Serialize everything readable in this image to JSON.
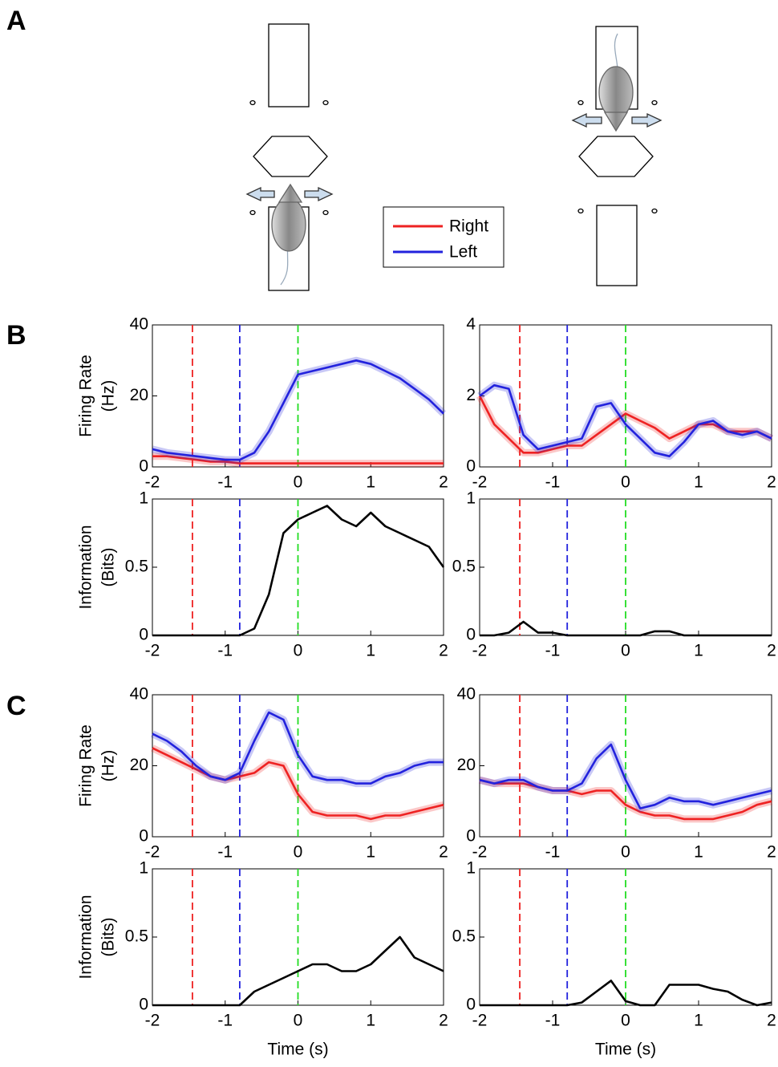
{
  "panel_labels": [
    "A",
    "B",
    "C"
  ],
  "chart_data": [
    {
      "type": "line",
      "ylabel": [
        "Firing Rate",
        "(Hz)"
      ],
      "x": [
        -2,
        -1.8,
        -1.6,
        -1.4,
        -1.2,
        -1,
        -0.8,
        -0.6,
        -0.4,
        -0.2,
        0,
        0.2,
        0.4,
        0.6,
        0.8,
        1,
        1.2,
        1.4,
        1.6,
        1.8,
        2
      ],
      "series": [
        {
          "name": "Right",
          "color": "#ee2222",
          "values": [
            3,
            3,
            2.5,
            2,
            1.5,
            1.5,
            1,
            1,
            1,
            1,
            1,
            1,
            1,
            1,
            1,
            1,
            1,
            1,
            1,
            1,
            1
          ]
        },
        {
          "name": "Left",
          "color": "#2222dd",
          "values": [
            5,
            4,
            3.5,
            3,
            2.5,
            2,
            2,
            4,
            10,
            18,
            26,
            27,
            28,
            29,
            30,
            29,
            27,
            25,
            22,
            19,
            15
          ]
        }
      ],
      "xlim": [
        -2,
        2
      ],
      "xticks": [
        -2,
        -1,
        0,
        1,
        2
      ],
      "ylim": [
        0,
        40
      ],
      "yticks": [
        0,
        20,
        40
      ],
      "vlines": [
        {
          "x": -1.45,
          "color": "#ee2222"
        },
        {
          "x": -0.8,
          "color": "#2222dd"
        },
        {
          "x": 0,
          "color": "#22dd22"
        }
      ]
    },
    {
      "type": "line",
      "x": [
        -2,
        -1.8,
        -1.6,
        -1.4,
        -1.2,
        -1,
        -0.8,
        -0.6,
        -0.4,
        -0.2,
        0,
        0.2,
        0.4,
        0.6,
        0.8,
        1,
        1.2,
        1.4,
        1.6,
        1.8,
        2
      ],
      "series": [
        {
          "name": "Right",
          "color": "#ee2222",
          "values": [
            2,
            1.2,
            0.8,
            0.4,
            0.4,
            0.5,
            0.6,
            0.6,
            0.9,
            1.2,
            1.5,
            1.3,
            1.1,
            0.8,
            1,
            1.2,
            1.2,
            1,
            1,
            1,
            0.8
          ]
        },
        {
          "name": "Left",
          "color": "#2222dd",
          "values": [
            2,
            2.3,
            2.2,
            0.9,
            0.5,
            0.6,
            0.7,
            0.8,
            1.7,
            1.8,
            1.2,
            0.8,
            0.4,
            0.3,
            0.7,
            1.2,
            1.3,
            1,
            0.9,
            1,
            0.8
          ]
        }
      ],
      "xlim": [
        -2,
        2
      ],
      "xticks": [
        -2,
        -1,
        0,
        1,
        2
      ],
      "ylim": [
        0,
        4
      ],
      "yticks": [
        0,
        2,
        4
      ],
      "vlines": [
        {
          "x": -1.45,
          "color": "#ee2222"
        },
        {
          "x": -0.8,
          "color": "#2222dd"
        },
        {
          "x": 0,
          "color": "#22dd22"
        }
      ]
    },
    {
      "type": "line",
      "ylabel": [
        "Information",
        "(Bits)"
      ],
      "x": [
        -2,
        -1.8,
        -1.6,
        -1.4,
        -1.2,
        -1,
        -0.8,
        -0.6,
        -0.4,
        -0.2,
        0,
        0.2,
        0.4,
        0.6,
        0.8,
        1,
        1.2,
        1.4,
        1.6,
        1.8,
        2
      ],
      "series": [
        {
          "color": "#000000",
          "values": [
            0,
            0,
            0,
            0,
            0,
            0,
            0,
            0.05,
            0.3,
            0.75,
            0.85,
            0.9,
            0.95,
            0.85,
            0.8,
            0.9,
            0.8,
            0.75,
            0.7,
            0.65,
            0.5
          ]
        }
      ],
      "xlim": [
        -2,
        2
      ],
      "xticks": [
        -2,
        -1,
        0,
        1,
        2
      ],
      "ylim": [
        0,
        1
      ],
      "yticks": [
        0,
        0.5,
        1
      ],
      "vlines": [
        {
          "x": -1.45,
          "color": "#ee2222"
        },
        {
          "x": -0.8,
          "color": "#2222dd"
        },
        {
          "x": 0,
          "color": "#22dd22"
        }
      ]
    },
    {
      "type": "line",
      "x": [
        -2,
        -1.8,
        -1.6,
        -1.4,
        -1.2,
        -1,
        -0.8,
        -0.6,
        -0.4,
        -0.2,
        0,
        0.2,
        0.4,
        0.6,
        0.8,
        1,
        1.2,
        1.4,
        1.6,
        1.8,
        2
      ],
      "series": [
        {
          "color": "#000000",
          "values": [
            0,
            0,
            0.02,
            0.1,
            0.02,
            0.02,
            0,
            0,
            0,
            0,
            0,
            0,
            0.03,
            0.03,
            0,
            0,
            0,
            0,
            0,
            0,
            0
          ]
        }
      ],
      "xlim": [
        -2,
        2
      ],
      "xticks": [
        -2,
        -1,
        0,
        1,
        2
      ],
      "ylim": [
        0,
        1
      ],
      "yticks": [
        0,
        0.5,
        1
      ],
      "vlines": [
        {
          "x": -1.45,
          "color": "#ee2222"
        },
        {
          "x": -0.8,
          "color": "#2222dd"
        },
        {
          "x": 0,
          "color": "#22dd22"
        }
      ]
    },
    {
      "type": "line",
      "ylabel": [
        "Firing Rate",
        "(Hz)"
      ],
      "x": [
        -2,
        -1.8,
        -1.6,
        -1.4,
        -1.2,
        -1,
        -0.8,
        -0.6,
        -0.4,
        -0.2,
        0,
        0.2,
        0.4,
        0.6,
        0.8,
        1,
        1.2,
        1.4,
        1.6,
        1.8,
        2
      ],
      "series": [
        {
          "name": "Right",
          "color": "#ee2222",
          "values": [
            25,
            23,
            21,
            19,
            17,
            16,
            17,
            18,
            21,
            20,
            12,
            7,
            6,
            6,
            6,
            5,
            6,
            6,
            7,
            8,
            9
          ]
        },
        {
          "name": "Left",
          "color": "#2222dd",
          "values": [
            29,
            27,
            24,
            20,
            17,
            16,
            18,
            27,
            35,
            33,
            23,
            17,
            16,
            16,
            15,
            15,
            17,
            18,
            20,
            21,
            21
          ]
        }
      ],
      "xlim": [
        -2,
        2
      ],
      "xticks": [
        -2,
        -1,
        0,
        1,
        2
      ],
      "ylim": [
        0,
        40
      ],
      "yticks": [
        0,
        20,
        40
      ],
      "vlines": [
        {
          "x": -1.45,
          "color": "#ee2222"
        },
        {
          "x": -0.8,
          "color": "#2222dd"
        },
        {
          "x": 0,
          "color": "#22dd22"
        }
      ]
    },
    {
      "type": "line",
      "x": [
        -2,
        -1.8,
        -1.6,
        -1.4,
        -1.2,
        -1,
        -0.8,
        -0.6,
        -0.4,
        -0.2,
        0,
        0.2,
        0.4,
        0.6,
        0.8,
        1,
        1.2,
        1.4,
        1.6,
        1.8,
        2
      ],
      "series": [
        {
          "name": "Right",
          "color": "#ee2222",
          "values": [
            16,
            15,
            15,
            15,
            14,
            13,
            13,
            12,
            13,
            13,
            9,
            7,
            6,
            6,
            5,
            5,
            5,
            6,
            7,
            9,
            10
          ]
        },
        {
          "name": "Left",
          "color": "#2222dd",
          "values": [
            16,
            15,
            16,
            16,
            14,
            13,
            13,
            15,
            22,
            26,
            16,
            8,
            9,
            11,
            10,
            10,
            9,
            10,
            11,
            12,
            13
          ]
        }
      ],
      "xlim": [
        -2,
        2
      ],
      "xticks": [
        -2,
        -1,
        0,
        1,
        2
      ],
      "ylim": [
        0,
        40
      ],
      "yticks": [
        0,
        20,
        40
      ],
      "vlines": [
        {
          "x": -1.45,
          "color": "#ee2222"
        },
        {
          "x": -0.8,
          "color": "#2222dd"
        },
        {
          "x": 0,
          "color": "#22dd22"
        }
      ]
    },
    {
      "type": "line",
      "ylabel": [
        "Information",
        "(Bits)"
      ],
      "xlabel": "Time (s)",
      "x": [
        -2,
        -1.8,
        -1.6,
        -1.4,
        -1.2,
        -1,
        -0.8,
        -0.6,
        -0.4,
        -0.2,
        0,
        0.2,
        0.4,
        0.6,
        0.8,
        1,
        1.2,
        1.4,
        1.6,
        1.8,
        2
      ],
      "series": [
        {
          "color": "#000000",
          "values": [
            0,
            0,
            0,
            0,
            0,
            0,
            0,
            0.1,
            0.15,
            0.2,
            0.25,
            0.3,
            0.3,
            0.25,
            0.25,
            0.3,
            0.4,
            0.5,
            0.35,
            0.3,
            0.25
          ]
        }
      ],
      "xlim": [
        -2,
        2
      ],
      "xticks": [
        -2,
        -1,
        0,
        1,
        2
      ],
      "ylim": [
        0,
        1
      ],
      "yticks": [
        0,
        0.5,
        1
      ],
      "vlines": [
        {
          "x": -1.45,
          "color": "#ee2222"
        },
        {
          "x": -0.8,
          "color": "#2222dd"
        },
        {
          "x": 0,
          "color": "#22dd22"
        }
      ]
    },
    {
      "type": "line",
      "xlabel": "Time (s)",
      "x": [
        -2,
        -1.8,
        -1.6,
        -1.4,
        -1.2,
        -1,
        -0.8,
        -0.6,
        -0.4,
        -0.2,
        0,
        0.2,
        0.4,
        0.6,
        0.8,
        1,
        1.2,
        1.4,
        1.6,
        1.8,
        2
      ],
      "series": [
        {
          "color": "#000000",
          "values": [
            0,
            0,
            0,
            0,
            0,
            0,
            0,
            0.02,
            0.1,
            0.18,
            0.03,
            0,
            0,
            0.15,
            0.15,
            0.15,
            0.12,
            0.1,
            0.04,
            0,
            0.02
          ]
        }
      ],
      "xlim": [
        -2,
        2
      ],
      "xticks": [
        -2,
        -1,
        0,
        1,
        2
      ],
      "ylim": [
        0,
        1
      ],
      "yticks": [
        0,
        0.5,
        1
      ],
      "vlines": [
        {
          "x": -1.45,
          "color": "#ee2222"
        },
        {
          "x": -0.8,
          "color": "#2222dd"
        },
        {
          "x": 0,
          "color": "#22dd22"
        }
      ]
    }
  ]
}
